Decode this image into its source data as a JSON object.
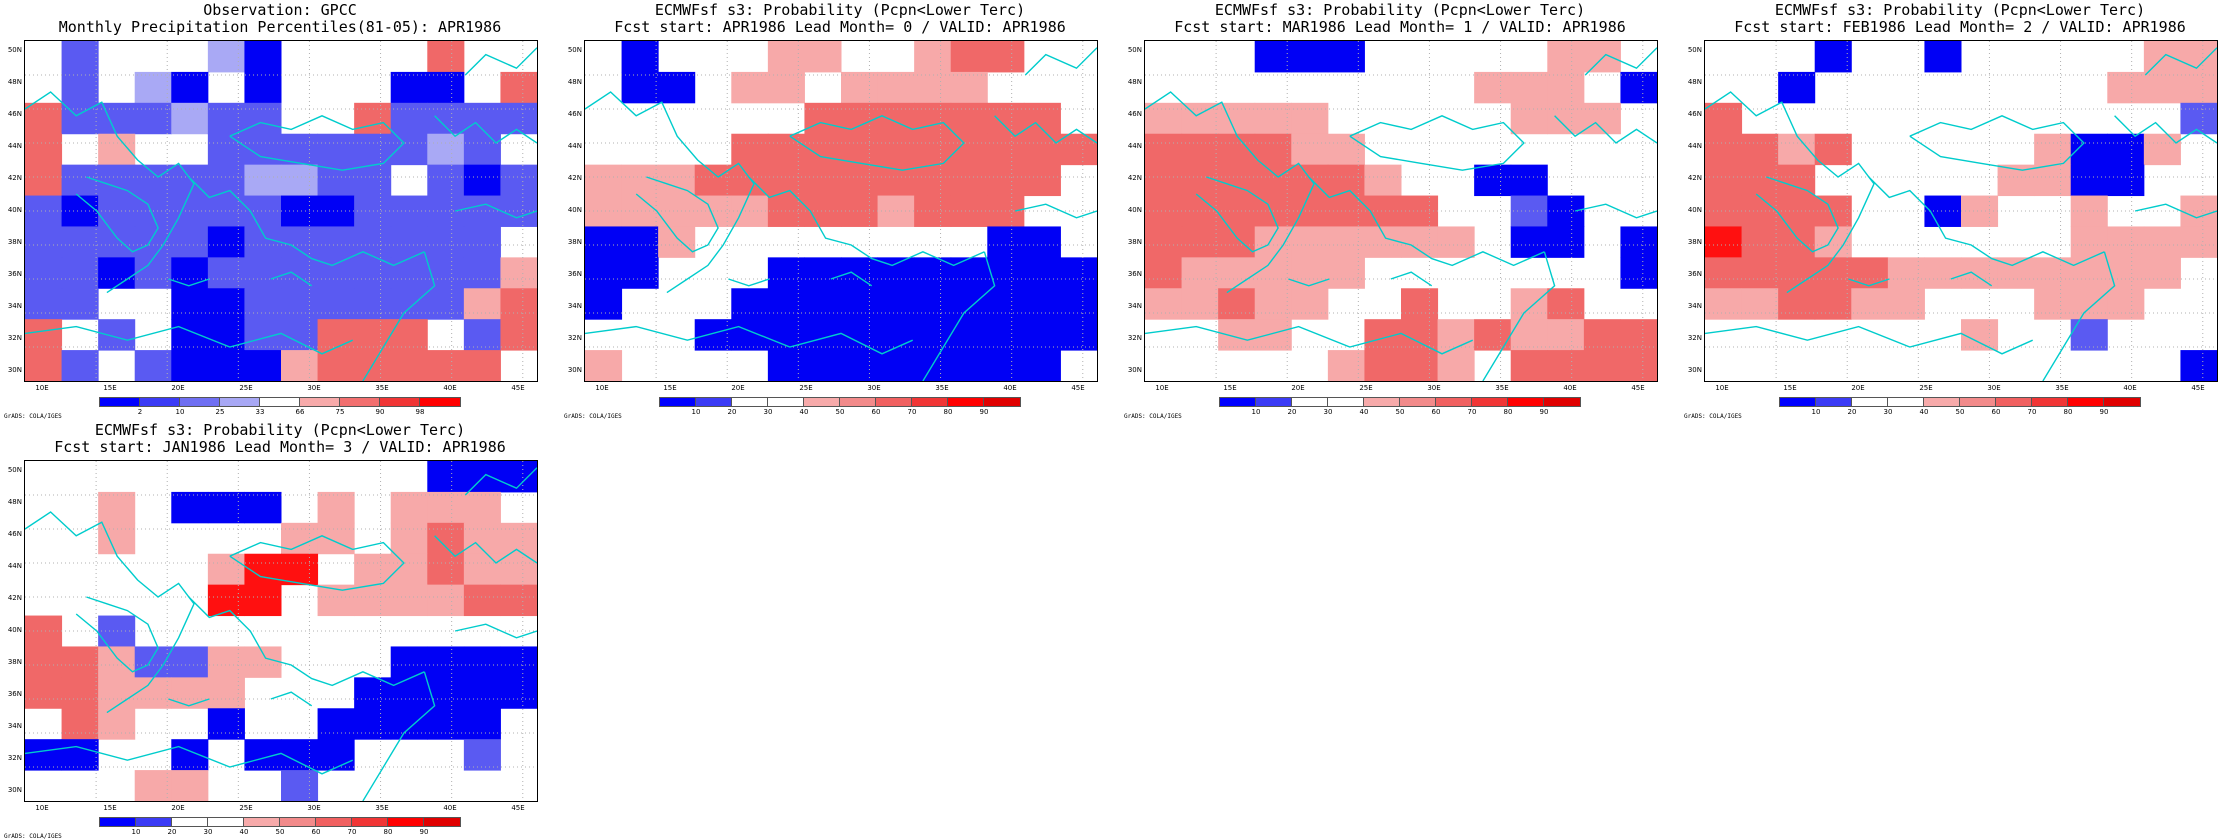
{
  "panels": [
    {
      "title_line1": "Observation: GPCC",
      "title_line2": "Monthly Precipitation Percentiles(81-05): APR1986",
      "colorbar_labels": [
        "2",
        "10",
        "25",
        "33",
        "66",
        "75",
        "90",
        "98"
      ],
      "colorbar_colors": [
        "#0000ff",
        "#3b3bf5",
        "#6f6ff2",
        "#a8a8f5",
        "#ffffff",
        "#f7aaaa",
        "#f26f6f",
        "#f03535",
        "#ff0000"
      ],
      "grads_label": "GrADS: COLA/IGES"
    },
    {
      "title_line1": "ECMWFsf s3: Probability (Pcpn<Lower Terc)",
      "title_line2": "Fcst start: APR1986  Lead Month= 0 / VALID: APR1986",
      "colorbar_labels": [
        "10",
        "20",
        "30",
        "40",
        "50",
        "60",
        "70",
        "80",
        "90"
      ],
      "colorbar_colors": [
        "#0000ff",
        "#3b3bf5",
        "#ffffff",
        "#ffffff",
        "#f7aaaa",
        "#f28a8a",
        "#f06060",
        "#f03535",
        "#ff0000",
        "#e00000"
      ],
      "grads_label": "GrADS: COLA/IGES"
    },
    {
      "title_line1": "ECMWFsf s3: Probability (Pcpn<Lower Terc)",
      "title_line2": "Fcst start: MAR1986  Lead Month= 1 / VALID: APR1986",
      "colorbar_labels": [
        "10",
        "20",
        "30",
        "40",
        "50",
        "60",
        "70",
        "80",
        "90"
      ],
      "colorbar_colors": [
        "#0000ff",
        "#3b3bf5",
        "#ffffff",
        "#ffffff",
        "#f7aaaa",
        "#f28a8a",
        "#f06060",
        "#f03535",
        "#ff0000",
        "#e00000"
      ],
      "grads_label": "GrADS: COLA/IGES"
    },
    {
      "title_line1": "ECMWFsf s3: Probability (Pcpn<Lower Terc)",
      "title_line2": "Fcst start: FEB1986  Lead Month= 2 / VALID: APR1986",
      "colorbar_labels": [
        "10",
        "20",
        "30",
        "40",
        "50",
        "60",
        "70",
        "80",
        "90"
      ],
      "colorbar_colors": [
        "#0000ff",
        "#3b3bf5",
        "#ffffff",
        "#ffffff",
        "#f7aaaa",
        "#f28a8a",
        "#f06060",
        "#f03535",
        "#ff0000",
        "#e00000"
      ],
      "grads_label": "GrADS: COLA/IGES"
    },
    {
      "title_line1": "ECMWFsf s3: Probability (Pcpn<Lower Terc)",
      "title_line2": "Fcst start: JAN1986  Lead Month= 3 / VALID: APR1986",
      "colorbar_labels": [
        "10",
        "20",
        "30",
        "40",
        "50",
        "60",
        "70",
        "80",
        "90"
      ],
      "colorbar_colors": [
        "#0000ff",
        "#3b3bf5",
        "#ffffff",
        "#ffffff",
        "#f7aaaa",
        "#f28a8a",
        "#f06060",
        "#f03535",
        "#ff0000",
        "#e00000"
      ],
      "grads_label": "GrADS: COLA/IGES"
    }
  ],
  "axes": {
    "lat_labels": [
      "50N",
      "48N",
      "46N",
      "44N",
      "42N",
      "40N",
      "38N",
      "36N",
      "34N",
      "32N",
      "30N"
    ],
    "lon_labels": [
      "10E",
      "15E",
      "20E",
      "25E",
      "30E",
      "35E",
      "40E",
      "45E"
    ]
  },
  "colors": {
    "coast": "#00cccc",
    "grid": "#b0b0b0"
  }
}
